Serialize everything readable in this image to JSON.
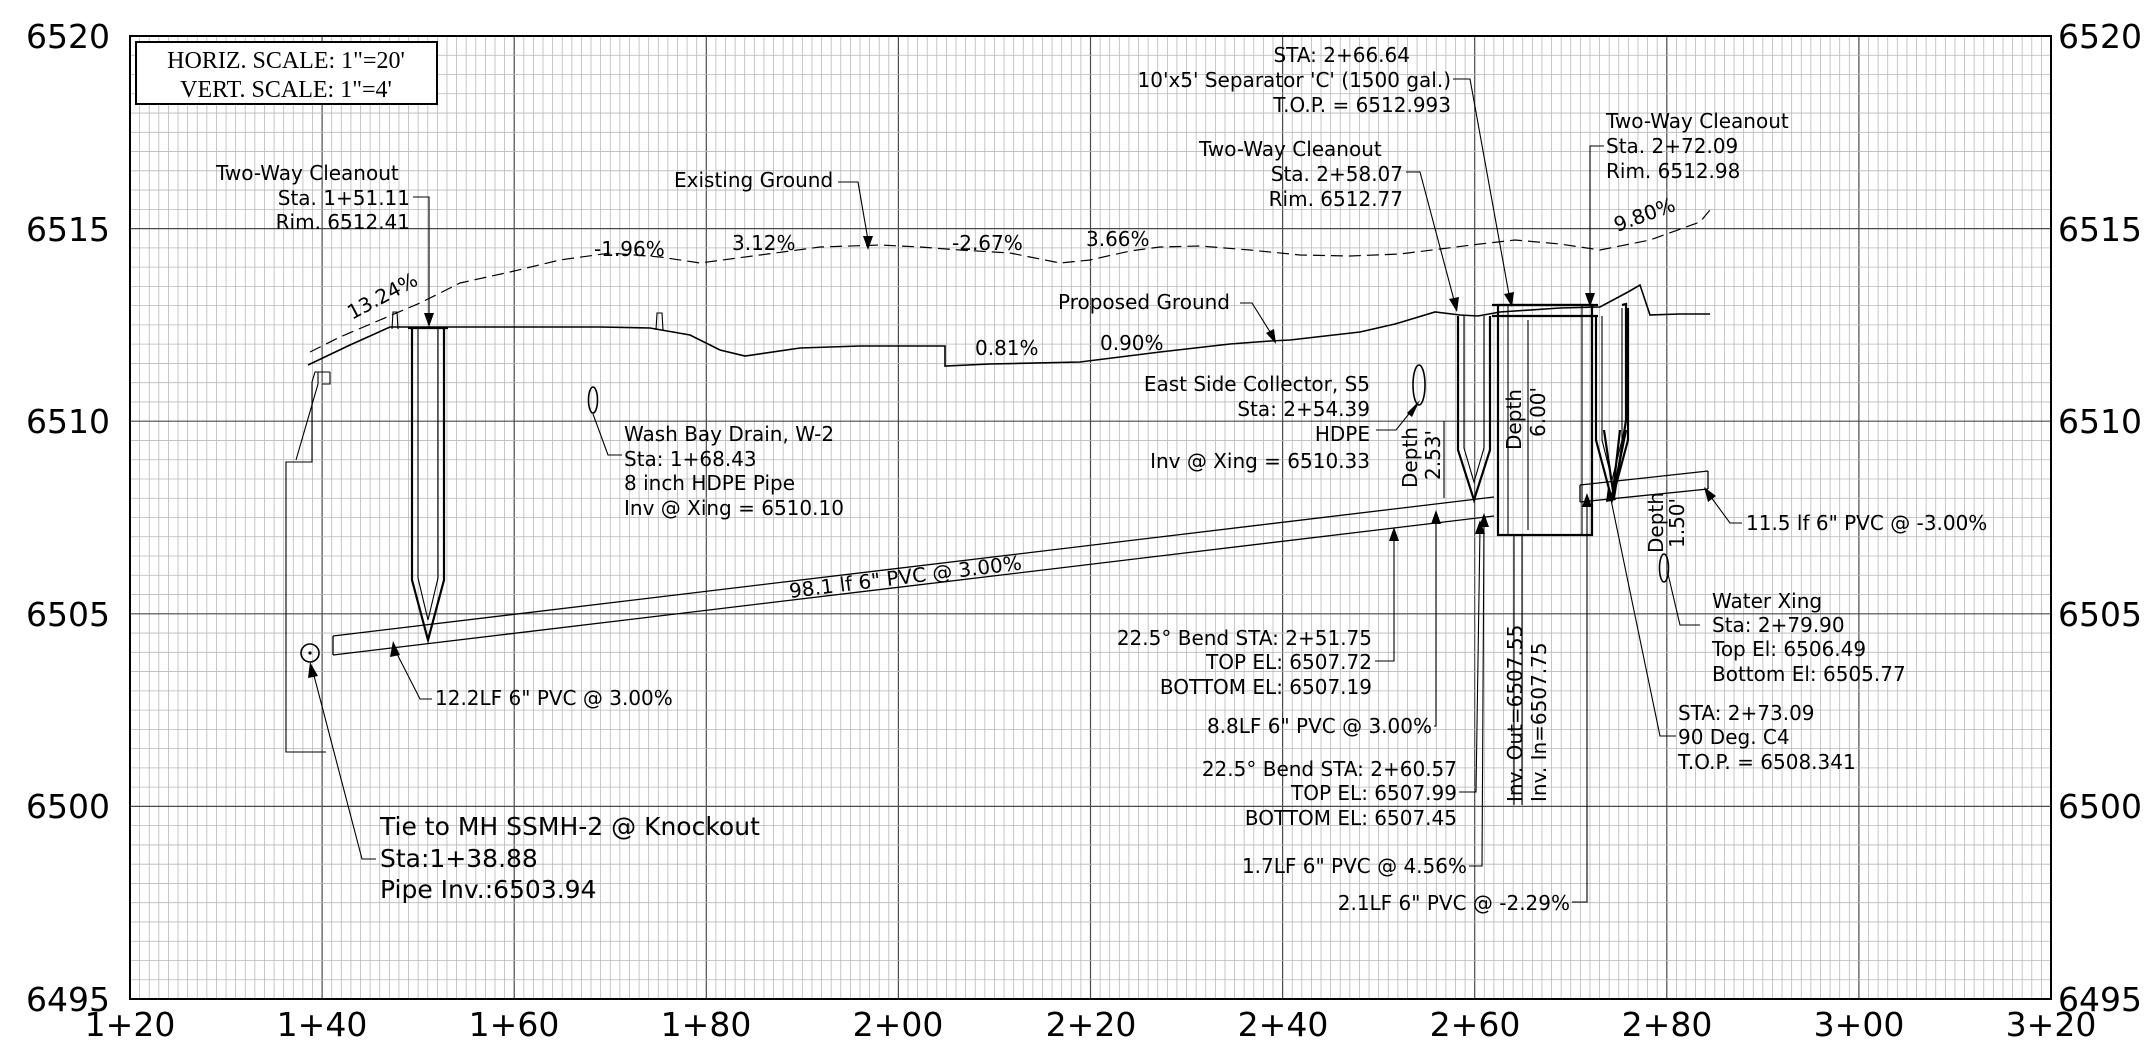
{
  "scale_box": {
    "horiz": "HORIZ. SCALE: 1\"=20'",
    "vert": "VERT. SCALE: 1\"=4'"
  },
  "axes": {
    "x_ticks": [
      "1+20",
      "1+40",
      "1+60",
      "1+80",
      "2+00",
      "2+20",
      "2+40",
      "2+60",
      "2+80",
      "3+00",
      "3+20"
    ],
    "y_ticks_left": [
      "6520",
      "6515",
      "6510",
      "6505",
      "6500",
      "6495"
    ],
    "y_ticks_right": [
      "6520",
      "6515",
      "6510",
      "6505",
      "6500",
      "6495"
    ]
  },
  "profile": {
    "existing_ground": "Existing Ground",
    "proposed_ground": "Proposed Ground",
    "grade_labels": [
      "13.24%",
      "-1.96%",
      "3.12%",
      "-2.67%",
      "3.66%",
      "0.81%",
      "0.90%",
      "9.80%"
    ]
  },
  "annotations": {
    "cleanout_1": {
      "l1": "Two-Way Cleanout",
      "l2": "Sta. 1+51.11",
      "l3": "Rim. 6512.41"
    },
    "cleanout_2": {
      "l1": "Two-Way Cleanout",
      "l2": "Sta. 2+58.07",
      "l3": "Rim. 6512.77"
    },
    "cleanout_3": {
      "l1": "Two-Way Cleanout",
      "l2": "Sta. 2+72.09",
      "l3": "Rim. 6512.98"
    },
    "separator": {
      "l1": "STA: 2+66.64",
      "l2": "10'x5' Separator 'C' (1500 gal.)",
      "l3": "T.O.P. = 6512.993"
    },
    "wash_bay": {
      "l1": "Wash Bay Drain, W-2",
      "l2": "Sta: 1+68.43",
      "l3": "8 inch HDPE Pipe",
      "l4": "Inv @ Xing = 6510.10"
    },
    "east_collector": {
      "l1": "East Side Collector, S5",
      "l2": "Sta: 2+54.39",
      "l3": "HDPE",
      "l4": "Inv @ Xing = 6510.33"
    },
    "tie_mh": {
      "l1": "Tie to MH SSMH-2 @ Knockout",
      "l2": "Sta:1+38.88",
      "l3": "Pipe Inv.:6503.94"
    },
    "pipe_98": "98.1 lf 6\" PVC @ 3.00%",
    "pipe_12": "12.2LF 6\" PVC @ 3.00%",
    "pipe_11": "11.5 lf 6\" PVC @ -3.00%",
    "bend_1": {
      "l1": "22.5° Bend STA: 2+51.75",
      "l2": "TOP EL: 6507.72",
      "l3": "BOTTOM EL: 6507.19"
    },
    "pipe_8": "8.8LF 6\" PVC @ 3.00%",
    "bend_2": {
      "l1": "22.5° Bend STA: 2+60.57",
      "l2": "TOP EL: 6507.99",
      "l3": "BOTTOM EL: 6507.45"
    },
    "pipe_1": "1.7LF 6\" PVC @ 4.56%",
    "pipe_2": "2.1LF 6\" PVC @ -2.29%",
    "water_xing": {
      "l1": "Water Xing",
      "l2": "Sta: 2+79.90",
      "l3": "Top El: 6506.49",
      "l4": "Bottom El: 6505.77"
    },
    "bend_90": {
      "l1": "STA: 2+73.09",
      "l2": "90 Deg. C4",
      "l3": "T.O.P. = 6508.341"
    },
    "depth_1": {
      "label": "Depth",
      "value": "2.53'"
    },
    "depth_2": {
      "label": "Depth",
      "value": "6.00'"
    },
    "depth_3": {
      "label": "Depth",
      "value": "1.50'"
    },
    "inv_out": "Inv. Out=6507.55",
    "inv_in": "Inv. In=6507.75"
  }
}
